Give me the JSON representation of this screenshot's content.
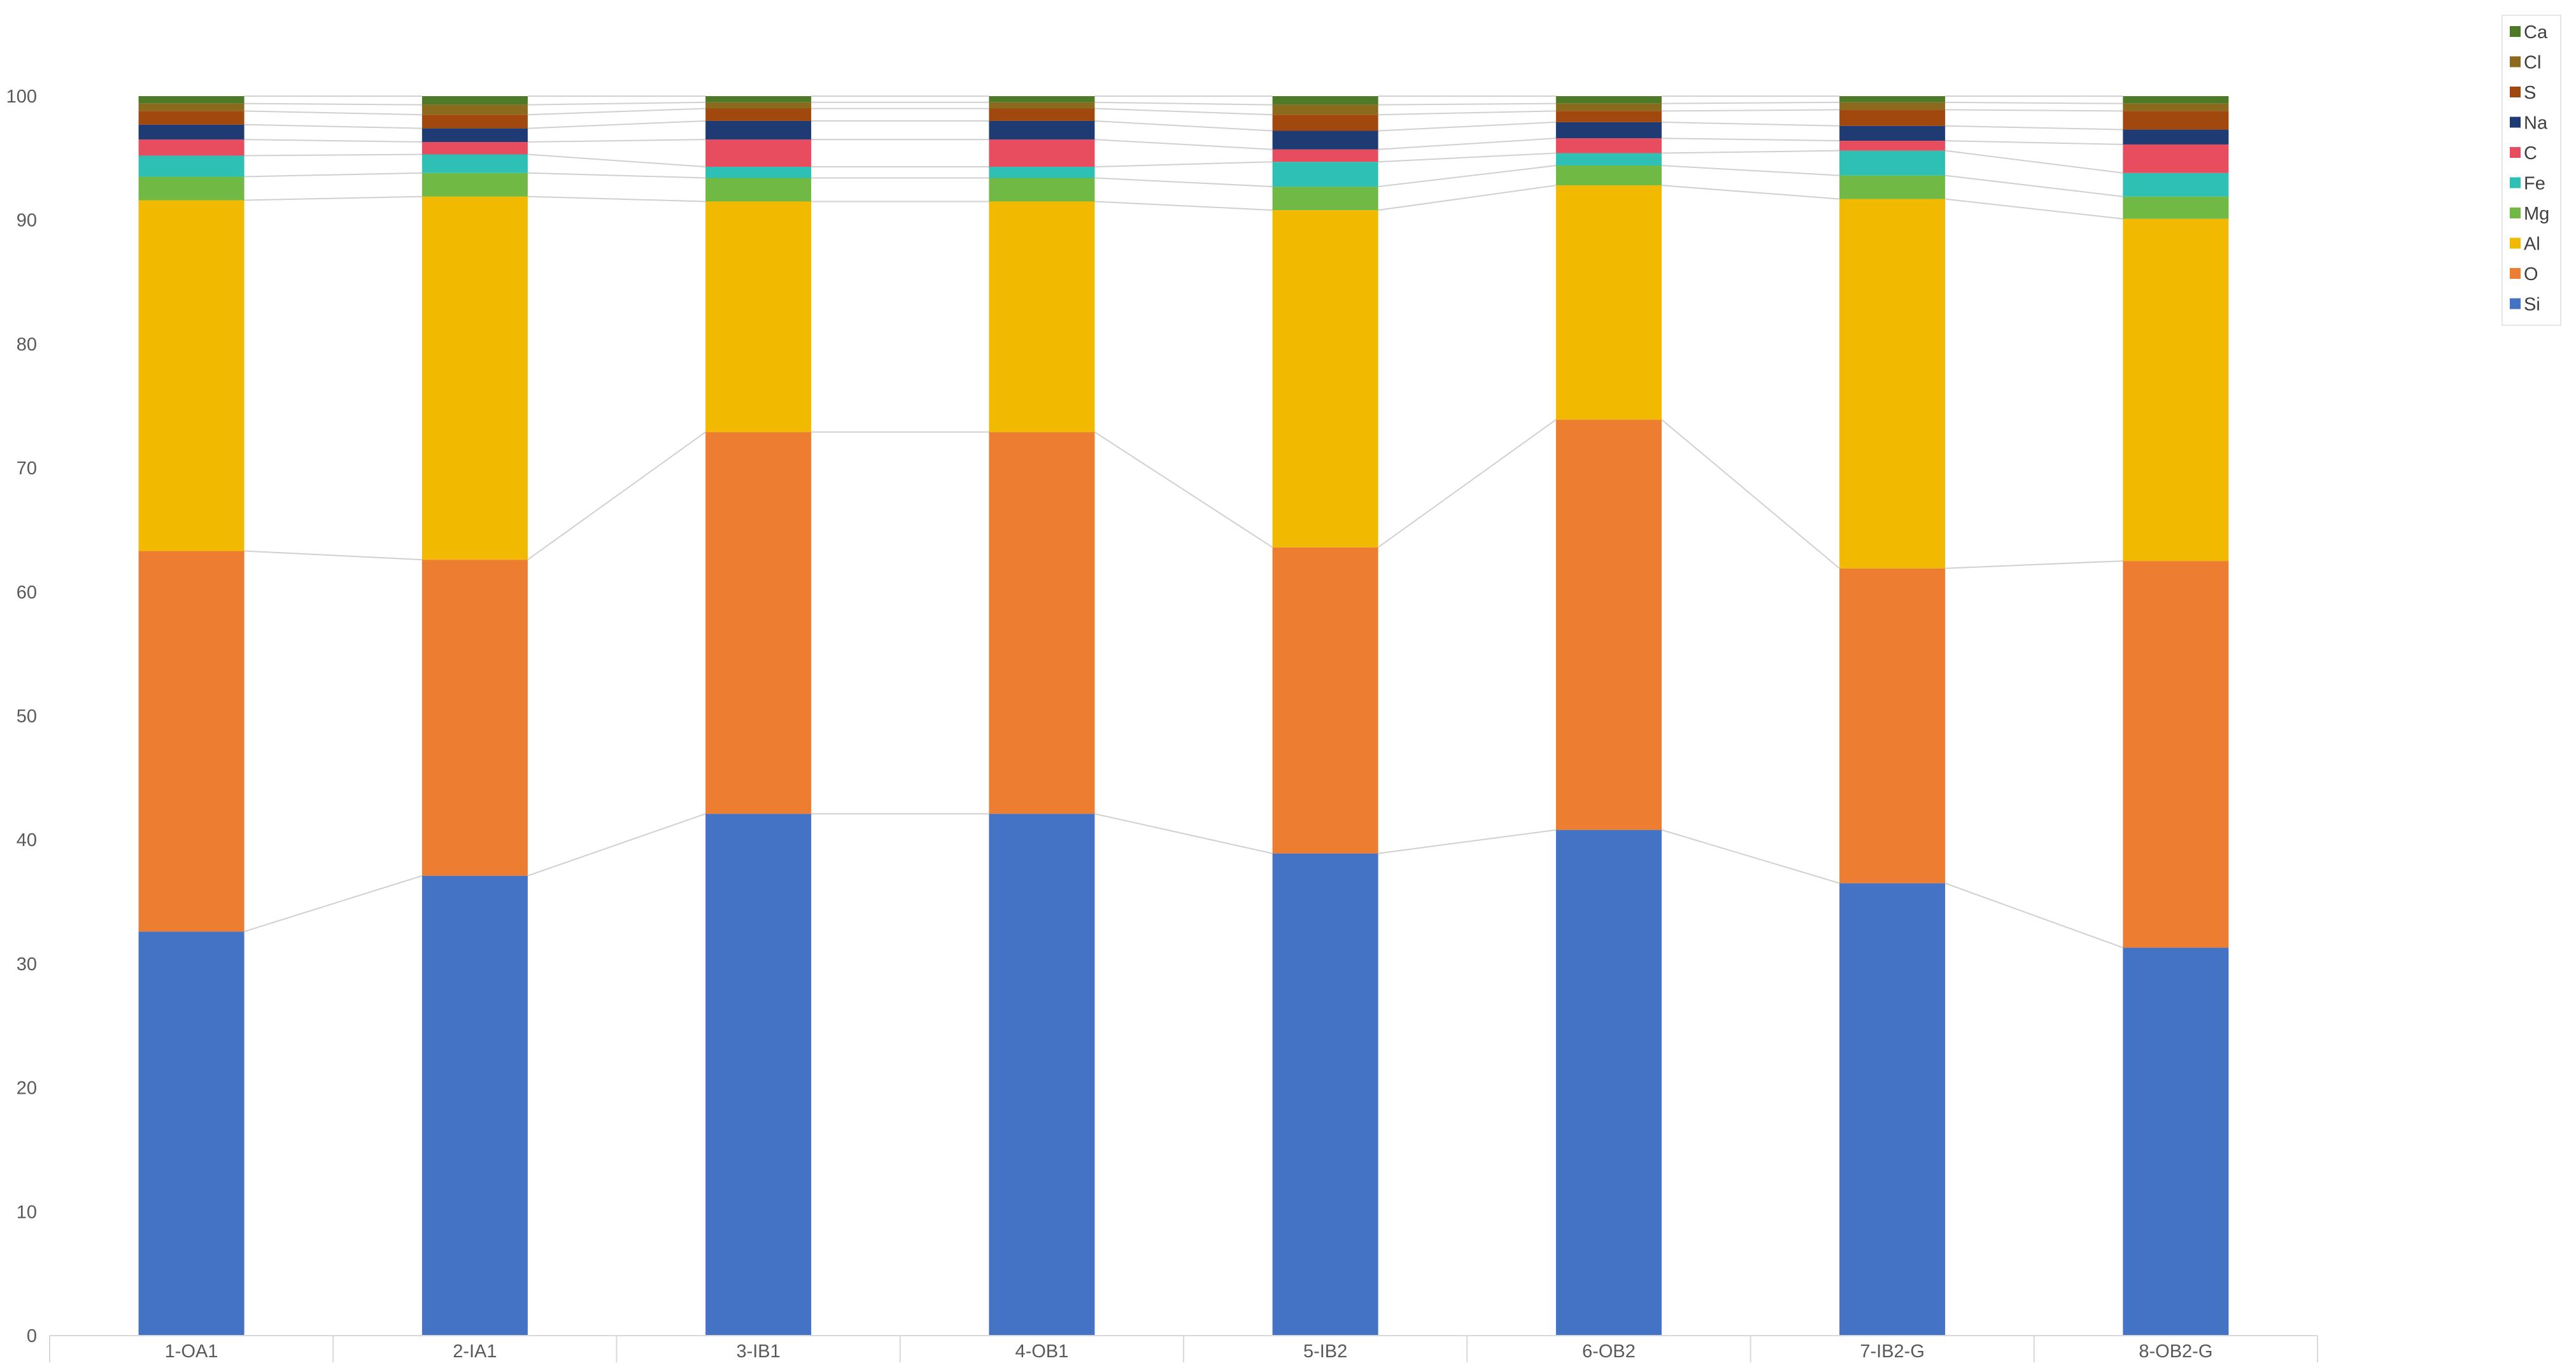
{
  "chart_data": {
    "type": "bar",
    "stacked": true,
    "title": "",
    "xlabel": "",
    "ylabel": "",
    "ylim": [
      0,
      100
    ],
    "yticks": [
      0,
      10,
      20,
      30,
      40,
      50,
      60,
      70,
      80,
      90,
      100
    ],
    "grid": false,
    "series_lines": true,
    "legend_position": "top-right",
    "categories": [
      "1-OA1",
      "2-IA1",
      "3-IB1",
      "4-OB1",
      "5-IB2",
      "6-OB2",
      "7-IB2-G",
      "8-OB2-G"
    ],
    "series": [
      {
        "name": "Si",
        "color": "#4472C4",
        "values": [
          32.6,
          37.1,
          42.1,
          42.1,
          38.9,
          40.8,
          36.5,
          31.3
        ]
      },
      {
        "name": "O",
        "color": "#ED7D31",
        "values": [
          30.7,
          25.5,
          30.8,
          30.8,
          24.7,
          33.1,
          25.4,
          31.2
        ]
      },
      {
        "name": "Al",
        "color": "#F1BA00",
        "values": [
          28.3,
          29.3,
          18.6,
          18.6,
          27.2,
          18.9,
          29.8,
          27.6
        ]
      },
      {
        "name": "Mg",
        "color": "#70B944",
        "values": [
          1.9,
          1.9,
          1.9,
          1.9,
          1.9,
          1.6,
          1.9,
          1.8
        ]
      },
      {
        "name": "Fe",
        "color": "#2EC0B5",
        "values": [
          1.7,
          1.5,
          0.9,
          0.9,
          2.0,
          1.0,
          2.0,
          1.9
        ]
      },
      {
        "name": "C",
        "color": "#E84C5F",
        "values": [
          1.3,
          1.0,
          2.2,
          2.2,
          1.0,
          1.2,
          0.8,
          2.3
        ]
      },
      {
        "name": "Na",
        "color": "#1F3B73",
        "values": [
          1.2,
          1.1,
          1.5,
          1.5,
          1.5,
          1.3,
          1.2,
          1.2
        ]
      },
      {
        "name": "S",
        "color": "#A0480E",
        "values": [
          1.1,
          1.1,
          1.0,
          1.0,
          1.3,
          0.9,
          1.3,
          1.5
        ]
      },
      {
        "name": "Cl",
        "color": "#8B6A1E",
        "values": [
          0.6,
          0.8,
          0.5,
          0.5,
          0.8,
          0.6,
          0.6,
          0.6
        ]
      },
      {
        "name": "Ca",
        "color": "#4E7A27",
        "values": [
          0.6,
          0.7,
          0.5,
          0.5,
          0.7,
          0.6,
          0.5,
          0.6
        ]
      }
    ]
  }
}
